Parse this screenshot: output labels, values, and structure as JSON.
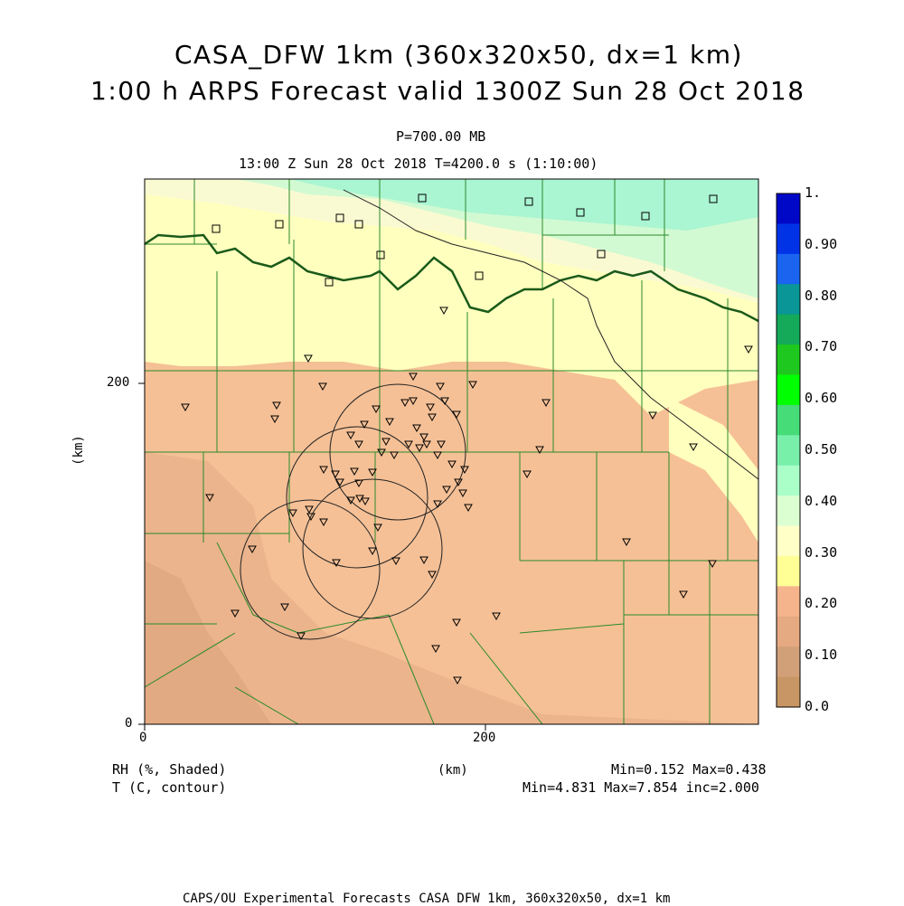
{
  "title_line1": "CASA_DFW 1km (360x320x50, dx=1 km)",
  "title_line2": "1:00 h ARPS Forecast valid 1300Z Sun 28 Oct 2018",
  "pressure_level": "P=700.00 MB",
  "time_line": "13:00 Z Sun 28 Oct 2018   T=4200.0 s (1:10:00)",
  "axes": {
    "x_ticks": [
      "0",
      "200"
    ],
    "y_ticks": [
      "0",
      "200"
    ],
    "x_unit": "(km)",
    "y_unit": "(km)"
  },
  "colorbar": {
    "labels": [
      "1.",
      "0.90",
      "0.80",
      "0.70",
      "0.60",
      "0.50",
      "0.40",
      "0.30",
      "0.20",
      "0.10",
      "0.0"
    ],
    "colors": [
      "#0008c8",
      "#0032e6",
      "#1a64f0",
      "#0a9696",
      "#14aa5a",
      "#1ec81e",
      "#00ff00",
      "#46dc78",
      "#78f0aa",
      "#aaffc8",
      "#dcffd2",
      "#ffffc8",
      "#ffff96",
      "#f5b48c",
      "#e6aa82",
      "#d2a078",
      "#c89664"
    ]
  },
  "legend": {
    "rh_label": "RH (%, Shaded)",
    "t_label": "T (C, contour)",
    "rh_stats": "Min=0.152 Max=0.438",
    "t_stats": "Min=4.831 Max=7.854 inc=2.000"
  },
  "footer": "CAPS/OU Experimental Forecasts  CASA DFW 1km, 360x320x50, dx=1 km"
}
